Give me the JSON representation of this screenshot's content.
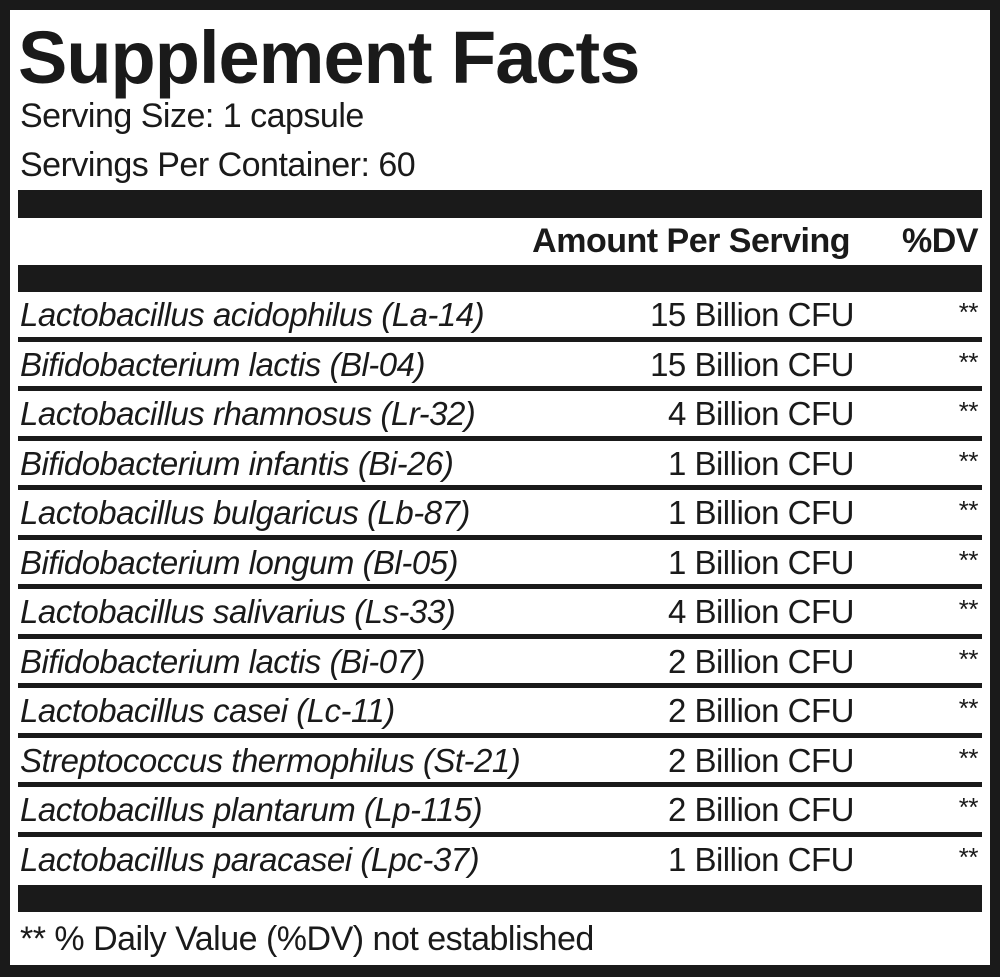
{
  "title": "Supplement Facts",
  "serving_size": "Serving Size: 1 capsule",
  "servings_per_container": "Servings Per Container: 60",
  "header": {
    "amount": "Amount Per Serving",
    "dv": "%DV"
  },
  "rows": [
    {
      "name": "Lactobacillus acidophilus (La-14)",
      "amount": "15 Billion CFU",
      "dv": "**"
    },
    {
      "name": "Bifidobacterium lactis (Bl-04)",
      "amount": "15 Billion CFU",
      "dv": "**"
    },
    {
      "name": "Lactobacillus rhamnosus (Lr-32)",
      "amount": "4 Billion CFU",
      "dv": "**"
    },
    {
      "name": "Bifidobacterium infantis (Bi-26)",
      "amount": "1 Billion CFU",
      "dv": "**"
    },
    {
      "name": "Lactobacillus bulgaricus (Lb-87)",
      "amount": "1 Billion CFU",
      "dv": "**"
    },
    {
      "name": "Bifidobacterium longum (Bl-05)",
      "amount": "1 Billion CFU",
      "dv": "**"
    },
    {
      "name": "Lactobacillus salivarius (Ls-33)",
      "amount": "4 Billion CFU",
      "dv": "**"
    },
    {
      "name": "Bifidobacterium lactis (Bi-07)",
      "amount": "2 Billion CFU",
      "dv": "**"
    },
    {
      "name": "Lactobacillus casei (Lc-11)",
      "amount": "2 Billion CFU",
      "dv": "**"
    },
    {
      "name": "Streptococcus thermophilus (St-21)",
      "amount": "2 Billion CFU",
      "dv": "**"
    },
    {
      "name": "Lactobacillus plantarum (Lp-115)",
      "amount": "2 Billion CFU",
      "dv": "**"
    },
    {
      "name": "Lactobacillus paracasei (Lpc-37)",
      "amount": "1 Billion CFU",
      "dv": "**"
    }
  ],
  "footnote": "** % Daily Value (%DV) not established"
}
